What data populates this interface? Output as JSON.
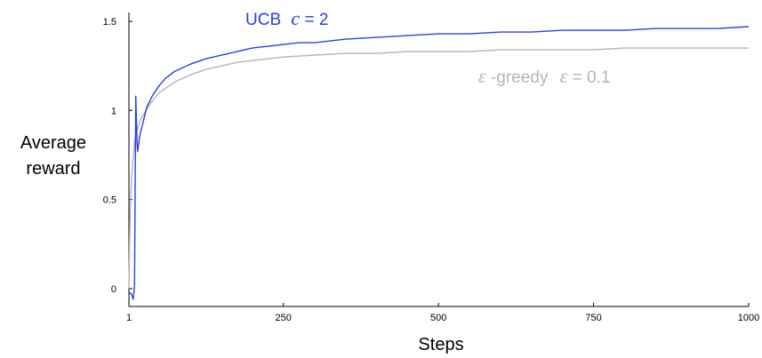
{
  "chart_data": {
    "type": "line",
    "xlabel": "Steps",
    "ylabel_line1": "Average",
    "ylabel_line2": "reward",
    "xlim": [
      1,
      1000
    ],
    "ylim": [
      -0.1,
      1.55
    ],
    "xticks": [
      {
        "value": 1,
        "label": "1"
      },
      {
        "value": 250,
        "label": "250"
      },
      {
        "value": 500,
        "label": "500"
      },
      {
        "value": 750,
        "label": "750"
      },
      {
        "value": 1000,
        "label": "1000"
      }
    ],
    "yticks": [
      {
        "value": 0,
        "label": "0"
      },
      {
        "value": 0.5,
        "label": "0.5"
      },
      {
        "value": 1,
        "label": "1"
      },
      {
        "value": 1.5,
        "label": "1.5"
      }
    ],
    "grid": false,
    "legend": "inline labels",
    "series": [
      {
        "name_prefix": "UCB",
        "name_symbol": "c",
        "name_suffix": " = 2",
        "color": "#2a3fe6",
        "x": [
          1,
          5,
          8,
          10,
          12,
          14,
          15,
          18,
          20,
          25,
          30,
          40,
          50,
          60,
          75,
          100,
          125,
          150,
          175,
          200,
          225,
          250,
          275,
          300,
          325,
          350,
          400,
          450,
          500,
          550,
          600,
          650,
          700,
          750,
          800,
          850,
          900,
          950,
          1000
        ],
        "values": [
          -0.02,
          -0.03,
          -0.06,
          0.02,
          1.08,
          0.82,
          0.77,
          0.85,
          0.88,
          0.95,
          1.02,
          1.09,
          1.14,
          1.18,
          1.22,
          1.26,
          1.29,
          1.31,
          1.33,
          1.35,
          1.36,
          1.37,
          1.38,
          1.38,
          1.39,
          1.4,
          1.41,
          1.42,
          1.43,
          1.43,
          1.44,
          1.44,
          1.45,
          1.45,
          1.45,
          1.46,
          1.46,
          1.46,
          1.47
        ]
      },
      {
        "name_prefix": "",
        "name_symbol": "ε",
        "name_suffix": "-greedy",
        "name_symbol2": "ε",
        "name_suffix2": " = 0.1",
        "color": "#b4b4b4",
        "x": [
          1,
          2,
          3,
          5,
          8,
          10,
          12,
          15,
          20,
          30,
          40,
          50,
          75,
          100,
          125,
          150,
          175,
          200,
          250,
          300,
          350,
          400,
          450,
          500,
          550,
          600,
          650,
          700,
          750,
          800,
          850,
          900,
          950,
          1000
        ],
        "values": [
          0.0,
          0.25,
          0.45,
          0.6,
          0.75,
          0.82,
          0.87,
          0.9,
          0.95,
          1.01,
          1.06,
          1.1,
          1.16,
          1.2,
          1.23,
          1.25,
          1.27,
          1.28,
          1.3,
          1.31,
          1.32,
          1.32,
          1.33,
          1.33,
          1.33,
          1.34,
          1.34,
          1.34,
          1.34,
          1.35,
          1.35,
          1.35,
          1.35,
          1.35
        ]
      }
    ]
  }
}
